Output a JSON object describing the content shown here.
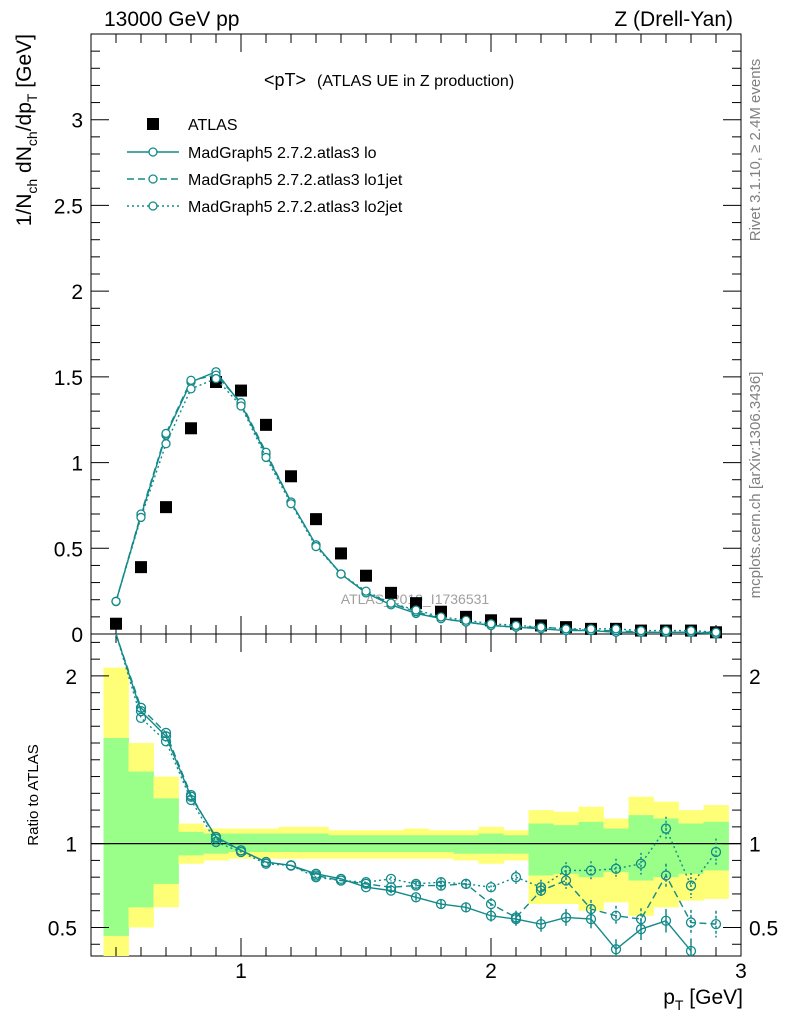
{
  "header": {
    "energy_label": "13000 GeV pp",
    "process_label": "Z (Drell-Yan)",
    "plot_title": "<pT>",
    "plot_subtitle": "(ATLAS UE in Z production)",
    "side_top": "Rivet 3.1.10, ≥ 2.4M events",
    "side_bottom": "mcplots.cern.ch [arXiv:1306.3436]",
    "watermark": "ATLAS_2019_I1736531"
  },
  "axes": {
    "y_main_label": "1/N_ch dN_ch/dp_T [GeV]",
    "y_ratio_label": "Ratio to ATLAS",
    "x_label": "p_T [GeV]"
  },
  "chart_data": {
    "type": "scatter",
    "x": [
      0.5,
      0.6,
      0.7,
      0.8,
      0.9,
      1.0,
      1.1,
      1.2,
      1.3,
      1.4,
      1.5,
      1.6,
      1.7,
      1.8,
      1.9,
      2.0,
      2.1,
      2.2,
      2.3,
      2.4,
      2.5,
      2.6,
      2.7,
      2.8,
      2.9
    ],
    "main": {
      "xlim": [
        0.4,
        3.0
      ],
      "ylim": [
        0,
        3.5
      ],
      "yticks": [
        0,
        0.5,
        1,
        1.5,
        2,
        2.5,
        3
      ],
      "ytick_labels": [
        "0",
        "0.5",
        "1",
        "1.5",
        "2",
        "2.5",
        "3"
      ]
    },
    "ratio": {
      "ylim": [
        0.33,
        2.25
      ],
      "yticks": [
        0.5,
        1,
        2
      ],
      "ytick_labels": [
        "0.5",
        "1",
        "2"
      ],
      "xticks": [
        1,
        2,
        3
      ],
      "xtick_labels": [
        "1",
        "2",
        "3"
      ],
      "band_yellow": [
        [
          0.33,
          2.05
        ],
        [
          0.5,
          1.6
        ],
        [
          0.62,
          1.4
        ],
        [
          0.88,
          1.12
        ],
        [
          0.9,
          1.09
        ],
        [
          0.91,
          1.09
        ],
        [
          0.91,
          1.09
        ],
        [
          0.91,
          1.1
        ],
        [
          0.91,
          1.1
        ],
        [
          0.91,
          1.08
        ],
        [
          0.91,
          1.08
        ],
        [
          0.91,
          1.08
        ],
        [
          0.91,
          1.09
        ],
        [
          0.91,
          1.08
        ],
        [
          0.9,
          1.08
        ],
        [
          0.88,
          1.1
        ],
        [
          0.9,
          1.08
        ],
        [
          0.64,
          1.2
        ],
        [
          0.64,
          1.19
        ],
        [
          0.6,
          1.22
        ],
        [
          0.65,
          1.15
        ],
        [
          0.57,
          1.28
        ],
        [
          0.62,
          1.25
        ],
        [
          0.66,
          1.2
        ],
        [
          0.67,
          1.23
        ]
      ],
      "band_green": [
        [
          0.45,
          1.63
        ],
        [
          0.62,
          1.43
        ],
        [
          0.76,
          1.27
        ],
        [
          0.93,
          1.07
        ],
        [
          0.94,
          1.06
        ],
        [
          0.95,
          1.06
        ],
        [
          0.95,
          1.06
        ],
        [
          0.95,
          1.06
        ],
        [
          0.95,
          1.06
        ],
        [
          0.95,
          1.05
        ],
        [
          0.95,
          1.05
        ],
        [
          0.95,
          1.05
        ],
        [
          0.95,
          1.05
        ],
        [
          0.95,
          1.05
        ],
        [
          0.94,
          1.05
        ],
        [
          0.94,
          1.06
        ],
        [
          0.94,
          1.05
        ],
        [
          0.81,
          1.12
        ],
        [
          0.82,
          1.11
        ],
        [
          0.8,
          1.13
        ],
        [
          0.83,
          1.09
        ],
        [
          0.78,
          1.17
        ],
        [
          0.8,
          1.15
        ],
        [
          0.82,
          1.12
        ],
        [
          0.84,
          1.13
        ]
      ]
    },
    "series": [
      {
        "name": "ATLAS",
        "style": "square",
        "color": "#000000",
        "values": [
          0.06,
          0.39,
          0.74,
          1.2,
          1.47,
          1.42,
          1.22,
          0.92,
          0.67,
          0.47,
          0.34,
          0.24,
          0.18,
          0.13,
          0.1,
          0.08,
          0.06,
          0.05,
          0.04,
          0.03,
          0.03,
          0.02,
          0.02,
          0.02,
          0.01
        ]
      },
      {
        "name": "MadGraph5 2.7.2.atlas3 lo",
        "style": "solid",
        "color": "#138a8a",
        "values": [
          0.19,
          0.69,
          1.16,
          1.47,
          1.53,
          1.34,
          1.05,
          0.77,
          0.52,
          0.35,
          0.24,
          0.17,
          0.12,
          0.09,
          0.07,
          0.05,
          0.04,
          0.03,
          0.02,
          0.02,
          0.01,
          0.01,
          0.01,
          0.01,
          0.0
        ],
        "ratio": [
          2.6,
          1.79,
          1.64,
          1.28,
          1.04,
          0.96,
          0.89,
          0.87,
          0.82,
          0.79,
          0.74,
          0.72,
          0.68,
          0.64,
          0.62,
          0.57,
          0.55,
          0.52,
          0.56,
          0.55,
          0.37,
          0.49,
          0.54,
          0.36,
          null
        ],
        "ratio_err": [
          0,
          0,
          0,
          0,
          0,
          0,
          0,
          0,
          0,
          0,
          0,
          0.015,
          0.02,
          0.025,
          0.03,
          0.035,
          0.04,
          0.045,
          0.05,
          0.055,
          0.06,
          0.065,
          0.07,
          0.075,
          0
        ]
      },
      {
        "name": "MadGraph5 2.7.2.atlas3 lo1jet",
        "style": "dashed",
        "color": "#138a8a",
        "values": [
          0.19,
          0.7,
          1.17,
          1.48,
          1.51,
          1.35,
          1.06,
          0.77,
          0.52,
          0.35,
          0.24,
          0.18,
          0.13,
          0.09,
          0.07,
          0.05,
          0.04,
          0.04,
          0.03,
          0.02,
          0.02,
          0.01,
          0.01,
          0.01,
          0.01
        ],
        "ratio": [
          2.6,
          1.81,
          1.66,
          1.29,
          1.03,
          0.96,
          0.89,
          0.87,
          0.81,
          0.78,
          0.76,
          0.74,
          0.75,
          0.75,
          0.76,
          0.64,
          0.56,
          0.72,
          0.78,
          0.61,
          0.57,
          0.55,
          0.81,
          0.53,
          0.52
        ],
        "ratio_err": [
          0,
          0,
          0,
          0,
          0,
          0,
          0,
          0,
          0,
          0,
          0,
          0.015,
          0.02,
          0.025,
          0.03,
          0.035,
          0.04,
          0.045,
          0.05,
          0.055,
          0.06,
          0.065,
          0.07,
          0.075,
          0.08
        ]
      },
      {
        "name": "MadGraph5 2.7.2.atlas3 lo2jet",
        "style": "dotted",
        "color": "#138a8a",
        "values": [
          0.19,
          0.68,
          1.11,
          1.43,
          1.49,
          1.33,
          1.03,
          0.76,
          0.51,
          0.35,
          0.25,
          0.18,
          0.14,
          0.1,
          0.08,
          0.06,
          0.05,
          0.04,
          0.03,
          0.03,
          0.03,
          0.02,
          0.02,
          0.02,
          0.01
        ],
        "ratio": [
          2.6,
          1.75,
          1.61,
          1.26,
          1.01,
          0.95,
          0.88,
          0.87,
          0.8,
          0.78,
          0.77,
          0.79,
          0.76,
          0.77,
          0.76,
          0.74,
          0.8,
          0.74,
          0.84,
          0.84,
          0.85,
          0.88,
          1.09,
          0.75,
          0.95
        ],
        "ratio_err": [
          0,
          0,
          0,
          0,
          0,
          0,
          0,
          0,
          0,
          0,
          0,
          0.015,
          0.02,
          0.025,
          0.03,
          0.035,
          0.04,
          0.045,
          0.05,
          0.055,
          0.06,
          0.065,
          0.07,
          0.075,
          0.08
        ]
      }
    ]
  }
}
